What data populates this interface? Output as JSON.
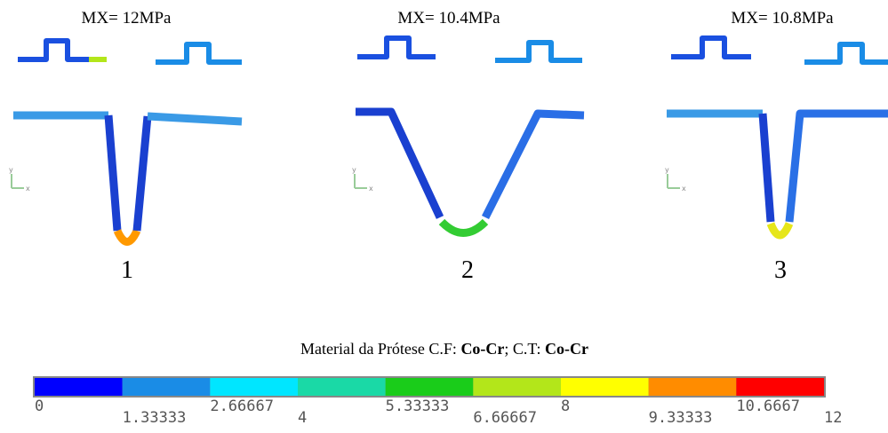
{
  "panels": [
    {
      "label": "MX= 12MPa",
      "number": "1"
    },
    {
      "label": "MX= 10.4MPa",
      "number": "2"
    },
    {
      "label": "MX= 10.8MPa",
      "number": "3"
    }
  ],
  "triad": {
    "y": "y",
    "x": "x"
  },
  "caption": {
    "parts": [
      "Material da Prótese C.F: ",
      "Co-Cr",
      "; C.T: ",
      "Co-Cr"
    ]
  },
  "colorbar": {
    "colors": [
      "#0000ff",
      "#1a8ce6",
      "#00e6ff",
      "#1ad9a6",
      "#1acc1a",
      "#b3e61a",
      "#ffff00",
      "#ff8c00",
      "#ff0000"
    ],
    "ticks": [
      0,
      1.33333,
      2.66667,
      4,
      5.33333,
      6.66667,
      8,
      9.33333,
      10.6667,
      12
    ]
  }
}
